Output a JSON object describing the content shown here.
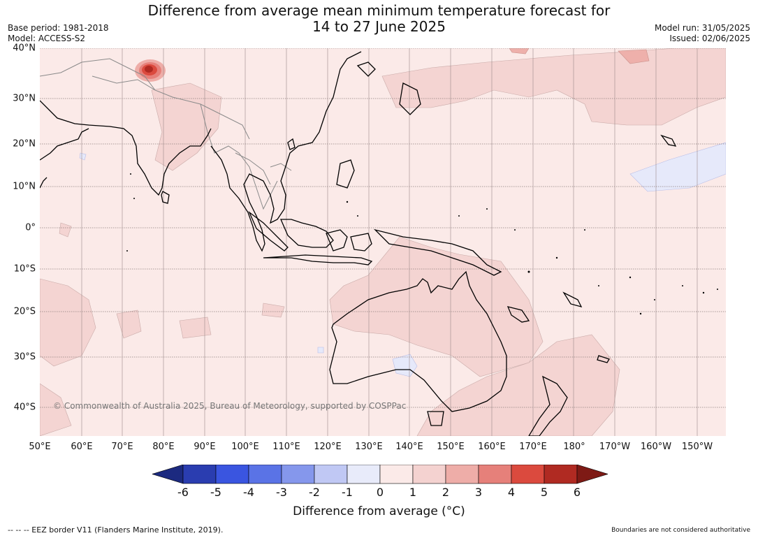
{
  "title_line1": "Difference from average mean minimum temperature forecast for",
  "title_line2": "14 to 27 June 2025",
  "base_period": "Base period: 1981-2018",
  "model": "Model: ACCESS-S2",
  "model_run": "Model run: 31/05/2025",
  "issued": "Issued: 02/06/2025",
  "copyright": "© Commonwealth of Australia 2025, Bureau of Meteorology, supported by COSPPac",
  "lat_labels": [
    "40°N",
    "30°N",
    "20°N",
    "10°N",
    "0°",
    "10°S",
    "20°S",
    "30°S",
    "40°S"
  ],
  "lon_labels": [
    "50°E",
    "60°E",
    "70°E",
    "80°E",
    "90°E",
    "100°E",
    "110°E",
    "120°E",
    "130°E",
    "140°E",
    "150°E",
    "160°E",
    "170°E",
    "180°",
    "170°W",
    "160°W",
    "150°W"
  ],
  "colorbar": {
    "ticks": [
      "-6",
      "-5",
      "-4",
      "-3",
      "-2",
      "-1",
      "0",
      "1",
      "2",
      "3",
      "4",
      "5",
      "6"
    ],
    "colors": [
      "#1c2a80",
      "#2a3db0",
      "#3a55e0",
      "#5a73e6",
      "#8597ec",
      "#c0c8f4",
      "#e8ebfa",
      "#fbeae8",
      "#f4d2d0",
      "#eeada8",
      "#e6807a",
      "#db4a3e",
      "#b02a22",
      "#7e1a15"
    ],
    "label": "Difference from average (°C)"
  },
  "footer_left": "--  --  -- EEZ border V11 (Flanders Marine Institute, 2019).",
  "footer_right": "Boundaries are not considered authoritative"
}
